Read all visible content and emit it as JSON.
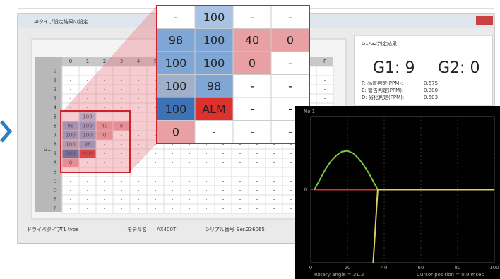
{
  "window": {
    "title": "AIタイプ設定結果の設定"
  },
  "grid": {
    "group_label": "G1",
    "columns": [
      "0",
      "1",
      "2",
      "3",
      "4",
      "5",
      "6",
      "7",
      "8",
      "9",
      "A",
      "B",
      "C",
      "D",
      "E",
      "F"
    ],
    "rows": [
      "0",
      "1",
      "2",
      "3",
      "4",
      "5",
      "6",
      "7",
      "8",
      "9",
      "A",
      "B",
      "C",
      "D",
      "E",
      "F"
    ],
    "cells": [
      [
        "-",
        "-",
        "-",
        "-",
        "-",
        "-",
        "-",
        "-",
        "-",
        "-",
        "-",
        "-",
        "-",
        "-",
        "-",
        "-"
      ],
      [
        "-",
        "-",
        "-",
        "-",
        "-",
        "-",
        "-",
        "-",
        "-",
        "-",
        "-",
        "-",
        "-",
        "-",
        "-",
        "-"
      ],
      [
        "-",
        "-",
        "-",
        "-",
        "-",
        "-",
        "-",
        "-",
        "-",
        "-",
        "-",
        "-",
        "-",
        "-",
        "-",
        "-"
      ],
      [
        "-",
        "-",
        "-",
        "-",
        "-",
        "-",
        "-",
        "-",
        "-",
        "-",
        "-",
        "-",
        "-",
        "-",
        "-",
        "-"
      ],
      [
        "-",
        "-",
        "-",
        "-",
        "-",
        "-",
        "-",
        "-",
        "-",
        "-",
        "-",
        "-",
        "-",
        "-",
        "-",
        "-"
      ],
      [
        "-",
        "100",
        "-",
        "-",
        "-",
        "-",
        "-",
        "-",
        "-",
        "-",
        "-",
        "-",
        "-",
        "-",
        "-",
        "-"
      ],
      [
        "98",
        "100",
        "40",
        "0",
        "-",
        "-",
        "-",
        "-",
        "-",
        "-",
        "-",
        "-",
        "-",
        "-",
        "-",
        "-"
      ],
      [
        "100",
        "100",
        "0",
        "-",
        "-",
        "-",
        "-",
        "-",
        "-",
        "-",
        "-",
        "-",
        "-",
        "-",
        "-",
        "-"
      ],
      [
        "100",
        "98",
        "-",
        "-",
        "-",
        "-",
        "-",
        "-",
        "-",
        "-",
        "-",
        "-",
        "-",
        "-",
        "-",
        "-"
      ],
      [
        "100",
        "ALM",
        "-",
        "-",
        "-",
        "-",
        "-",
        "-",
        "-",
        "-",
        "-",
        "-",
        "-",
        "-",
        "-",
        "-"
      ],
      [
        "0",
        "-",
        "-",
        "-",
        "-",
        "-",
        "-",
        "-",
        "-",
        "-",
        "-",
        "-",
        "-",
        "-",
        "-",
        "-"
      ],
      [
        "-",
        "-",
        "-",
        "-",
        "-",
        "-",
        "-",
        "-",
        "-",
        "-",
        "-",
        "-",
        "-",
        "-",
        "-",
        "-"
      ],
      [
        "-",
        "-",
        "-",
        "-",
        "-",
        "-",
        "-",
        "-",
        "-",
        "-",
        "-",
        "-",
        "-",
        "-",
        "-",
        "-"
      ],
      [
        "-",
        "-",
        "-",
        "-",
        "-",
        "-",
        "-",
        "-",
        "-",
        "-",
        "-",
        "-",
        "-",
        "-",
        "-",
        "-"
      ],
      [
        "-",
        "-",
        "-",
        "-",
        "-",
        "-",
        "-",
        "-",
        "-",
        "-",
        "-",
        "-",
        "-",
        "-",
        "-",
        "-"
      ],
      [
        "-",
        "-",
        "-",
        "-",
        "-",
        "-",
        "-",
        "-",
        "-",
        "-",
        "-",
        "-",
        "-",
        "-",
        "-",
        "-"
      ]
    ]
  },
  "zoom": {
    "cells": [
      [
        "-",
        "100",
        "-",
        "-"
      ],
      [
        "98",
        "100",
        "40",
        "0"
      ],
      [
        "100",
        "100",
        "0",
        "-"
      ],
      [
        "100",
        "98",
        "-",
        "-"
      ],
      [
        "100",
        "ALM",
        "-",
        "-"
      ],
      [
        "0",
        "-",
        "-",
        "-"
      ]
    ],
    "colors": [
      [
        "#ffffff",
        "#a9c3e4",
        "#ffffff",
        "#ffffff"
      ],
      [
        "#7fa6d4",
        "#7fa6d4",
        "#e8a0a4",
        "#e8a0a4"
      ],
      [
        "#7fa6d4",
        "#7fa6d4",
        "#e8a0a4",
        "#ffffff"
      ],
      [
        "#9fb0c8",
        "#7fa6d4",
        "#ffffff",
        "#ffffff"
      ],
      [
        "#3f72b5",
        "#e0302e",
        "#ffffff",
        "#ffffff"
      ],
      [
        "#e8a0a4",
        "#ffffff",
        "#ffffff",
        "#ffffff"
      ]
    ]
  },
  "panel": {
    "title": "G1/G2判定結果",
    "g1": "G1: 9",
    "g2": "G2: 0",
    "lines": [
      [
        "F: 品質判定(PPM):",
        "0.675"
      ],
      [
        "E: 警告判定(PPM):",
        "0.000"
      ],
      [
        "D: 劣化判定(PPM):",
        "0.503"
      ]
    ]
  },
  "status_bar": [
    [
      "ドライバタイプ",
      "T1 type"
    ],
    [
      "モデル名",
      "AX400T"
    ],
    [
      "シリアル番号",
      "Ser.236065"
    ]
  ],
  "chart_data": {
    "type": "line",
    "title": "No.1",
    "annotations": [
      "Rotary angle = 31.2",
      "Cursor position = 0.0 msec"
    ],
    "xlim": [
      0,
      100
    ],
    "ylim": [
      -100,
      100
    ],
    "xticks": [
      0,
      20,
      40,
      60,
      80,
      100
    ],
    "yticks": [
      0
    ],
    "grid": true,
    "series": [
      {
        "color": "#e03030",
        "x": [
          2,
          36.5
        ],
        "values": [
          0,
          0
        ]
      },
      {
        "color": "#7cc444",
        "x": [
          2,
          5,
          8,
          11,
          14,
          17,
          20,
          23,
          26,
          29,
          32,
          35,
          36.5
        ],
        "values": [
          0,
          14,
          28,
          39,
          47,
          52,
          53,
          50,
          43,
          33,
          21,
          7,
          0
        ]
      },
      {
        "color": "#d8d060",
        "x": [
          100,
          36.5,
          34
        ],
        "values": [
          0,
          0,
          -100
        ]
      }
    ]
  }
}
